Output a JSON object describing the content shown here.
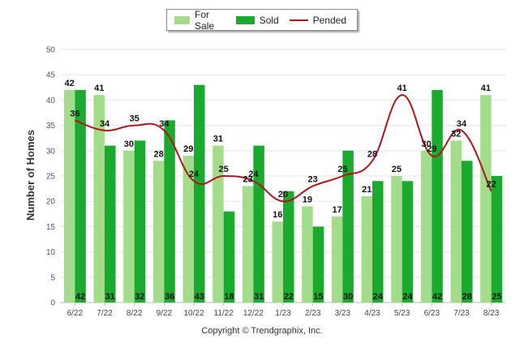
{
  "legend": {
    "items": [
      {
        "label": "For Sale",
        "color": "#a3dc8b"
      },
      {
        "label": "Sold",
        "color": "#1aaa2e"
      },
      {
        "label": "Pended",
        "color": "#b0151b"
      }
    ]
  },
  "copyright": "Copyright © Trendgraphix, Inc.",
  "chart_data": {
    "type": "bar",
    "ylabel": "Number of Homes",
    "ylim": [
      0,
      50
    ],
    "yticks": [
      0,
      5,
      10,
      15,
      20,
      25,
      30,
      35,
      40,
      45,
      50
    ],
    "categories": [
      "6/22",
      "7/22",
      "8/22",
      "9/22",
      "10/22",
      "11/22",
      "12/22",
      "1/23",
      "2/23",
      "3/23",
      "4/23",
      "5/23",
      "6/23",
      "7/23",
      "8/23"
    ],
    "series": [
      {
        "name": "For Sale",
        "type": "bar",
        "color": "#a3dc8b",
        "values": [
          42,
          41,
          30,
          28,
          29,
          31,
          23,
          16,
          19,
          17,
          21,
          25,
          30,
          32,
          41
        ]
      },
      {
        "name": "Sold",
        "type": "bar",
        "color": "#1aaa2e",
        "values": [
          42,
          31,
          32,
          36,
          43,
          18,
          31,
          22,
          15,
          30,
          24,
          24,
          42,
          28,
          25
        ]
      },
      {
        "name": "Pended",
        "type": "line",
        "color": "#b0151b",
        "values": [
          36,
          34,
          35,
          34,
          24,
          25,
          24,
          20,
          23,
          25,
          28,
          41,
          29,
          34,
          22
        ]
      }
    ],
    "grid": true,
    "legend_position": "top-center"
  }
}
